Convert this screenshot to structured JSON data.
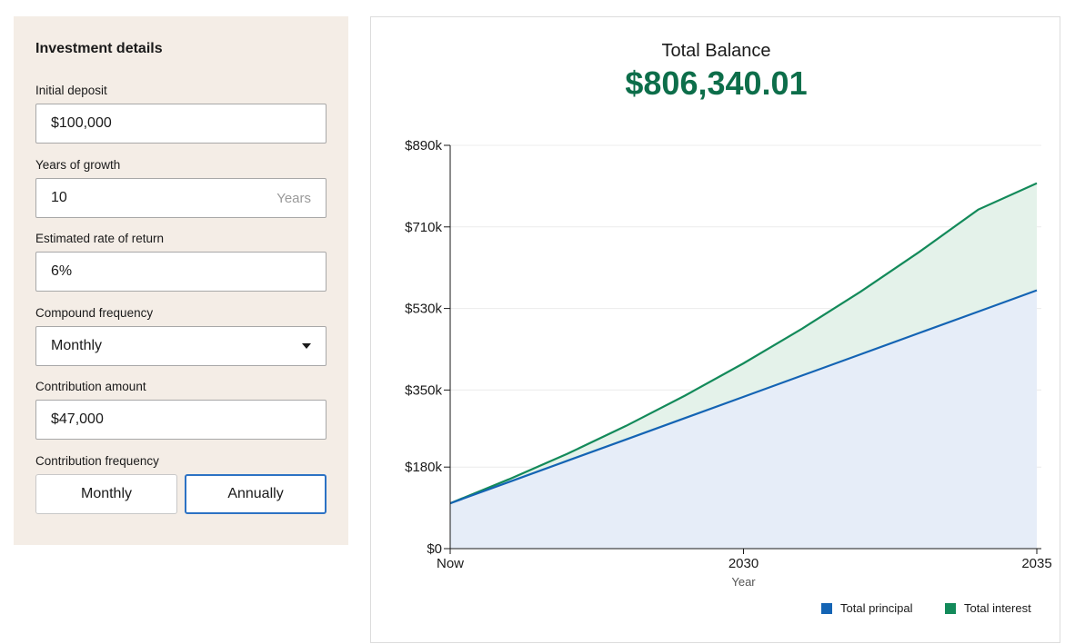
{
  "form": {
    "title": "Investment details",
    "initial_deposit": {
      "label": "Initial deposit",
      "value": "$100,000"
    },
    "years": {
      "label": "Years of growth",
      "value": "10",
      "suffix": "Years"
    },
    "rate": {
      "label": "Estimated rate of return",
      "value": "6%"
    },
    "compound": {
      "label": "Compound frequency",
      "value": "Monthly"
    },
    "contribution": {
      "label": "Contribution amount",
      "value": "$47,000"
    },
    "contribution_frequency": {
      "label": "Contribution frequency",
      "options": [
        "Monthly",
        "Annually"
      ],
      "selected": "Annually"
    }
  },
  "summary": {
    "label": "Total Balance",
    "value": "$806,340.01"
  },
  "colors": {
    "principal": "#1464b4",
    "interest": "#138a5a",
    "principal_fill": "#e6edf8",
    "interest_fill": "#e4f2ea",
    "accent": "#0d6e4a"
  },
  "chart_data": {
    "type": "area",
    "x": [
      0,
      1,
      2,
      3,
      4,
      5,
      6,
      7,
      8,
      9,
      10
    ],
    "xlabel": "Year",
    "x_ticks": [
      {
        "x": 0,
        "label": "Now"
      },
      {
        "x": 5,
        "label": "2030"
      },
      {
        "x": 10,
        "label": "2035"
      }
    ],
    "y_ticks": [
      {
        "value": 0,
        "label": "$0"
      },
      {
        "value": 180000,
        "label": "$180k"
      },
      {
        "value": 350000,
        "label": "$350k"
      },
      {
        "value": 530000,
        "label": "$530k"
      },
      {
        "value": 710000,
        "label": "$710k"
      },
      {
        "value": 890000,
        "label": "$890k"
      }
    ],
    "ylim": [
      0,
      890000
    ],
    "grid": true,
    "legend_position": "bottom-right",
    "series": [
      {
        "name": "Total principal",
        "values": [
          100000,
          147000,
          194000,
          241000,
          288000,
          335000,
          382000,
          429000,
          476000,
          523000,
          570000
        ]
      },
      {
        "name": "Total interest",
        "values": [
          100000,
          153000,
          209500,
          271000,
          337500,
          409000,
          485500,
          567500,
          655000,
          748000,
          806340
        ]
      }
    ]
  }
}
